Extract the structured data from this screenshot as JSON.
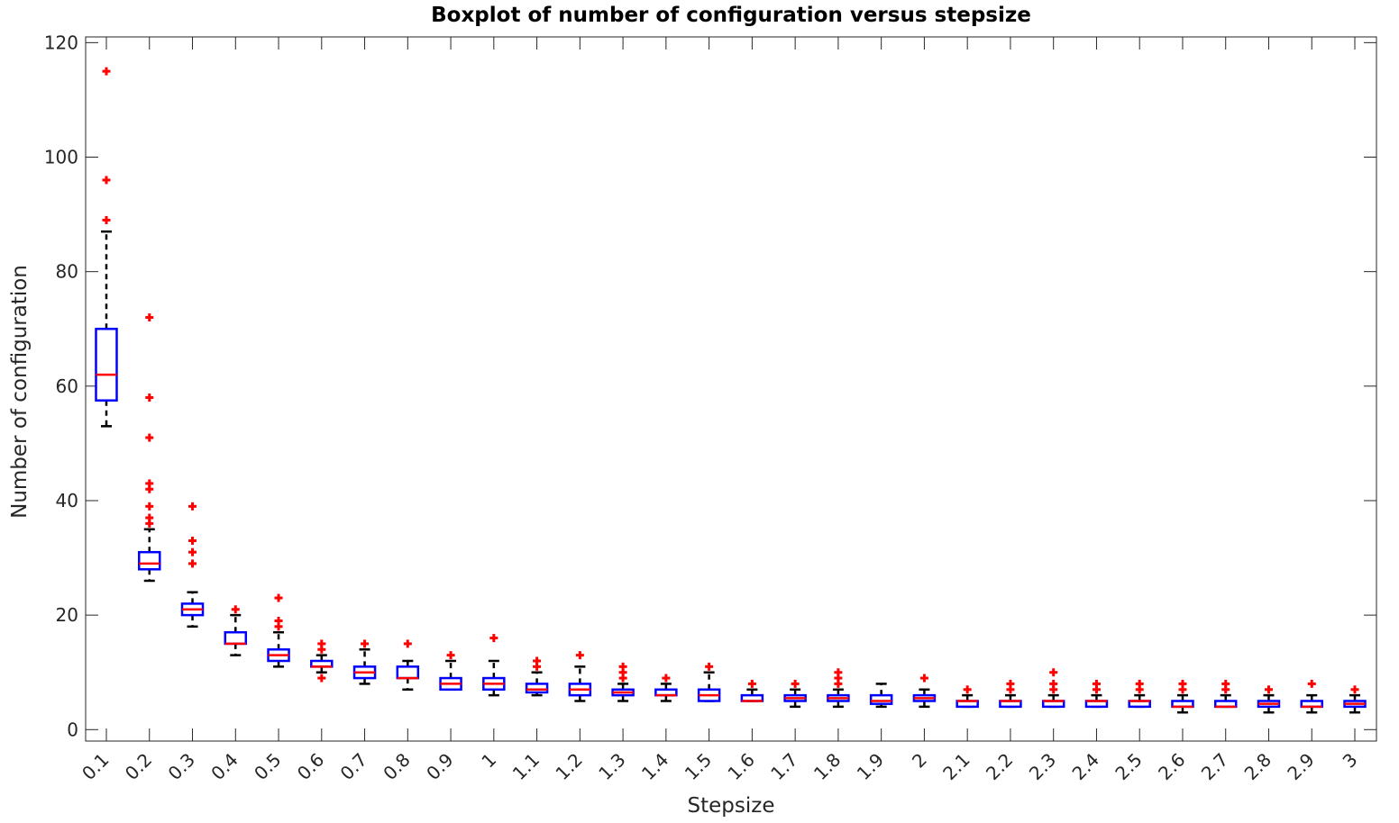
{
  "chart_data": {
    "type": "boxplot",
    "title": "Boxplot of number of configuration versus stepsize",
    "xlabel": "Stepsize",
    "ylabel": "Number of configuration",
    "ylim": [
      -2,
      121
    ],
    "yticks": [
      0,
      20,
      40,
      60,
      80,
      100,
      120
    ],
    "grid": false,
    "colors": {
      "box": "#0000ff",
      "median": "#ff0000",
      "whisker": "#000000",
      "outlier": "#ff0000",
      "axis": "#262626"
    },
    "categories": [
      "0.1",
      "0.2",
      "0.3",
      "0.4",
      "0.5",
      "0.6",
      "0.7",
      "0.8",
      "0.9",
      "1",
      "1.1",
      "1.2",
      "1.3",
      "1.4",
      "1.5",
      "1.6",
      "1.7",
      "1.8",
      "1.9",
      "2",
      "2.1",
      "2.2",
      "2.3",
      "2.4",
      "2.5",
      "2.6",
      "2.7",
      "2.8",
      "2.9",
      "3"
    ],
    "boxes": [
      {
        "q1": 57.5,
        "median": 62,
        "q3": 70,
        "whisker_low": 53,
        "whisker_high": 87,
        "outliers": [
          115,
          96,
          89
        ]
      },
      {
        "q1": 28,
        "median": 29,
        "q3": 31,
        "whisker_low": 26,
        "whisker_high": 35,
        "outliers": [
          72,
          58,
          51,
          43,
          42,
          39,
          37,
          36
        ]
      },
      {
        "q1": 20,
        "median": 21,
        "q3": 22,
        "whisker_low": 18,
        "whisker_high": 24,
        "outliers": [
          39,
          33,
          31,
          29
        ]
      },
      {
        "q1": 15,
        "median": 15,
        "q3": 17,
        "whisker_low": 13,
        "whisker_high": 20,
        "outliers": [
          21
        ]
      },
      {
        "q1": 12,
        "median": 13,
        "q3": 14,
        "whisker_low": 11,
        "whisker_high": 17,
        "outliers": [
          23,
          19,
          18
        ]
      },
      {
        "q1": 11,
        "median": 11,
        "q3": 12,
        "whisker_low": 10,
        "whisker_high": 13,
        "outliers": [
          15,
          14,
          9
        ]
      },
      {
        "q1": 9,
        "median": 10,
        "q3": 11,
        "whisker_low": 8,
        "whisker_high": 14,
        "outliers": [
          15
        ]
      },
      {
        "q1": 9,
        "median": 9,
        "q3": 11,
        "whisker_low": 7,
        "whisker_high": 12,
        "outliers": [
          15
        ]
      },
      {
        "q1": 7,
        "median": 8,
        "q3": 9,
        "whisker_low": 7,
        "whisker_high": 12,
        "outliers": [
          13
        ]
      },
      {
        "q1": 7,
        "median": 8,
        "q3": 9,
        "whisker_low": 6,
        "whisker_high": 12,
        "outliers": [
          16
        ]
      },
      {
        "q1": 6.5,
        "median": 7,
        "q3": 8,
        "whisker_low": 6,
        "whisker_high": 10,
        "outliers": [
          12,
          11
        ]
      },
      {
        "q1": 6,
        "median": 7,
        "q3": 8,
        "whisker_low": 5,
        "whisker_high": 11,
        "outliers": [
          13
        ]
      },
      {
        "q1": 6,
        "median": 6.5,
        "q3": 7,
        "whisker_low": 5,
        "whisker_high": 8,
        "outliers": [
          11,
          10,
          9
        ]
      },
      {
        "q1": 6,
        "median": 6,
        "q3": 7,
        "whisker_low": 5,
        "whisker_high": 8,
        "outliers": [
          9
        ]
      },
      {
        "q1": 5,
        "median": 6,
        "q3": 7,
        "whisker_low": 5,
        "whisker_high": 10,
        "outliers": [
          11
        ]
      },
      {
        "q1": 5,
        "median": 5,
        "q3": 6,
        "whisker_low": 5,
        "whisker_high": 7,
        "outliers": [
          8
        ]
      },
      {
        "q1": 5,
        "median": 5.5,
        "q3": 6,
        "whisker_low": 4,
        "whisker_high": 7,
        "outliers": [
          8
        ]
      },
      {
        "q1": 5,
        "median": 5.5,
        "q3": 6,
        "whisker_low": 4,
        "whisker_high": 7,
        "outliers": [
          10,
          9,
          8
        ]
      },
      {
        "q1": 4.5,
        "median": 5,
        "q3": 6,
        "whisker_low": 4,
        "whisker_high": 8,
        "outliers": []
      },
      {
        "q1": 5,
        "median": 5.5,
        "q3": 6,
        "whisker_low": 4,
        "whisker_high": 7,
        "outliers": [
          9
        ]
      },
      {
        "q1": 4,
        "median": 5,
        "q3": 5,
        "whisker_low": 4,
        "whisker_high": 6,
        "outliers": [
          7
        ]
      },
      {
        "q1": 4,
        "median": 5,
        "q3": 5,
        "whisker_low": 4,
        "whisker_high": 6,
        "outliers": [
          8,
          7
        ]
      },
      {
        "q1": 4,
        "median": 5,
        "q3": 5,
        "whisker_low": 4,
        "whisker_high": 6,
        "outliers": [
          10,
          8,
          7
        ]
      },
      {
        "q1": 4,
        "median": 5,
        "q3": 5,
        "whisker_low": 4,
        "whisker_high": 6,
        "outliers": [
          8,
          7
        ]
      },
      {
        "q1": 4,
        "median": 5,
        "q3": 5,
        "whisker_low": 4,
        "whisker_high": 6,
        "outliers": [
          8,
          7
        ]
      },
      {
        "q1": 4,
        "median": 4,
        "q3": 5,
        "whisker_low": 3,
        "whisker_high": 6,
        "outliers": [
          8,
          7
        ]
      },
      {
        "q1": 4,
        "median": 4,
        "q3": 5,
        "whisker_low": 4,
        "whisker_high": 6,
        "outliers": [
          8,
          7
        ]
      },
      {
        "q1": 4,
        "median": 4.5,
        "q3": 5,
        "whisker_low": 3,
        "whisker_high": 6,
        "outliers": [
          7
        ]
      },
      {
        "q1": 4,
        "median": 4,
        "q3": 5,
        "whisker_low": 3,
        "whisker_high": 6,
        "outliers": [
          8
        ]
      },
      {
        "q1": 4,
        "median": 4.5,
        "q3": 5,
        "whisker_low": 3,
        "whisker_high": 6,
        "outliers": [
          7
        ]
      }
    ]
  }
}
